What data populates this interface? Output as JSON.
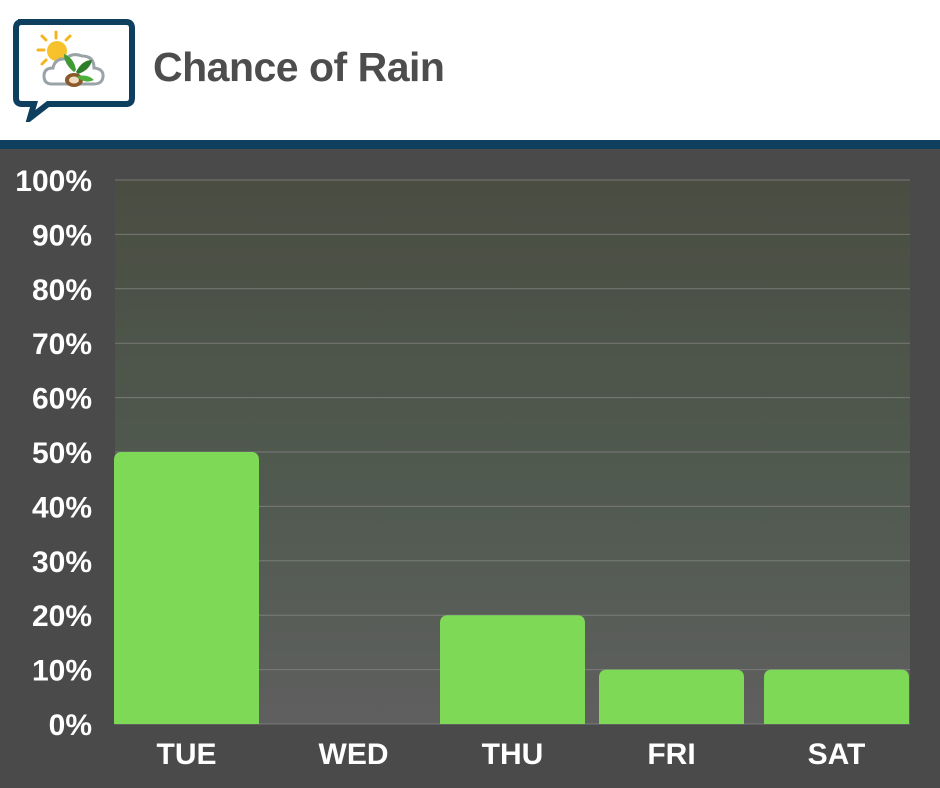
{
  "header": {
    "title": "Chance of Rain",
    "logo_icon": "weather-sun-cloud-leaf-icon"
  },
  "colors": {
    "bar": "#7ed957",
    "background": "#4a4a4a",
    "stripe": "#0e3f5e",
    "title": "#4d4d4d",
    "tick_label": "#ffffff",
    "grid": "#8a8a8a"
  },
  "chart_data": {
    "type": "bar",
    "title": "",
    "xlabel": "",
    "ylabel": "",
    "categories": [
      "TUE",
      "WED",
      "THU",
      "FRI",
      "SAT"
    ],
    "values": [
      50,
      0,
      20,
      10,
      10
    ],
    "ylim": [
      0,
      100
    ],
    "y_ticks": [
      "0%",
      "10%",
      "20%",
      "30%",
      "40%",
      "50%",
      "60%",
      "70%",
      "80%",
      "90%",
      "100%"
    ],
    "grid": true,
    "legend": "none"
  }
}
